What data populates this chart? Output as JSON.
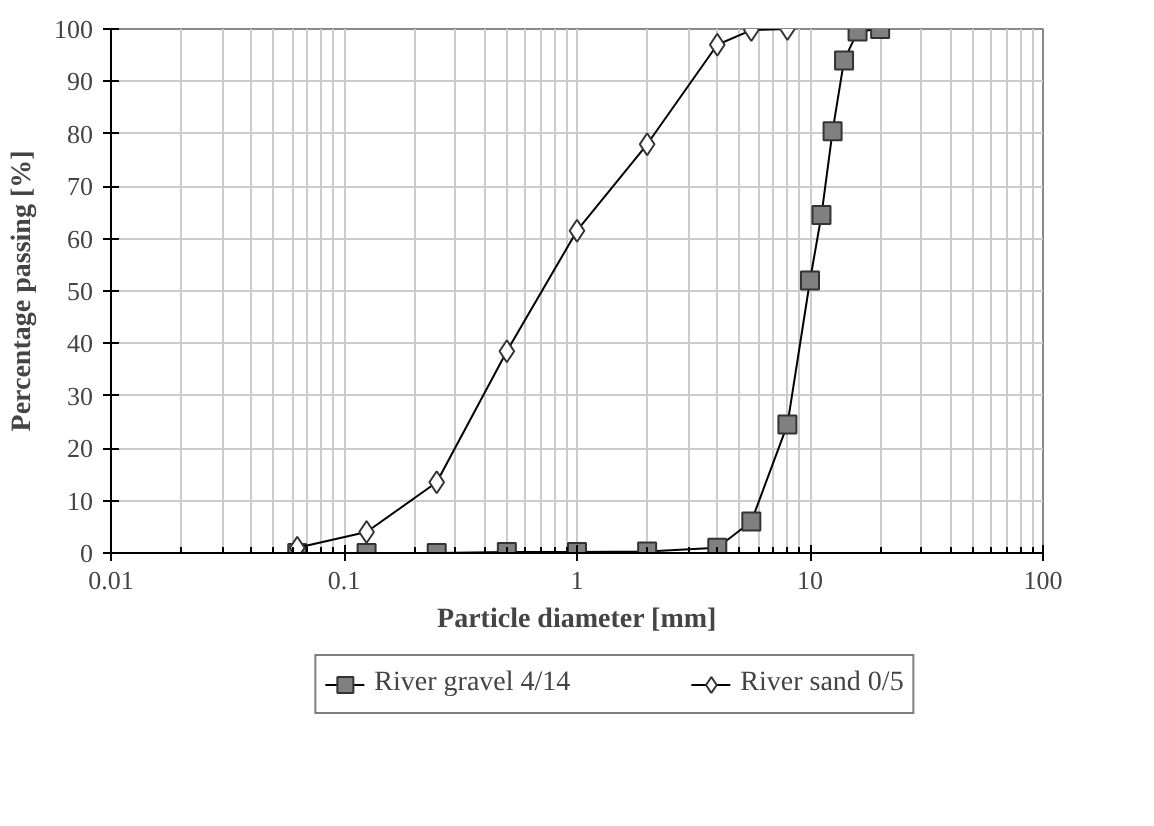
{
  "chart_data": {
    "type": "line",
    "xlabel": "Particle diameter [mm]",
    "ylabel": "Percentage passing [%]",
    "log": "x",
    "xlim": [
      0.01,
      100
    ],
    "xticks": [
      0.01,
      0.1,
      1,
      10,
      100
    ],
    "ylim": [
      0,
      100
    ],
    "yticks": [
      0,
      10,
      20,
      30,
      40,
      50,
      60,
      70,
      80,
      90,
      100
    ],
    "grid": true,
    "legend": "bottom",
    "line_style": "solid",
    "series": [
      {
        "name": "River gravel 4/14",
        "color": "#808080",
        "marker": "square",
        "x": [
          0.063,
          0.125,
          0.25,
          0.5,
          1,
          2,
          4,
          5.6,
          8,
          10,
          11.2,
          12.5,
          14,
          16,
          20
        ],
        "values": [
          0,
          0,
          0,
          0.2,
          0.2,
          0.3,
          1,
          6,
          24.5,
          52,
          64.5,
          80.5,
          94,
          99.5,
          100
        ]
      },
      {
        "name": "River sand 0/5",
        "color": "#ffffff",
        "marker": "diamond",
        "x": [
          0.063,
          0.125,
          0.25,
          0.5,
          1,
          2,
          4,
          5.6,
          8
        ],
        "values": [
          1,
          4,
          13.5,
          38.5,
          61.5,
          78,
          97,
          99.8,
          100
        ]
      }
    ]
  }
}
